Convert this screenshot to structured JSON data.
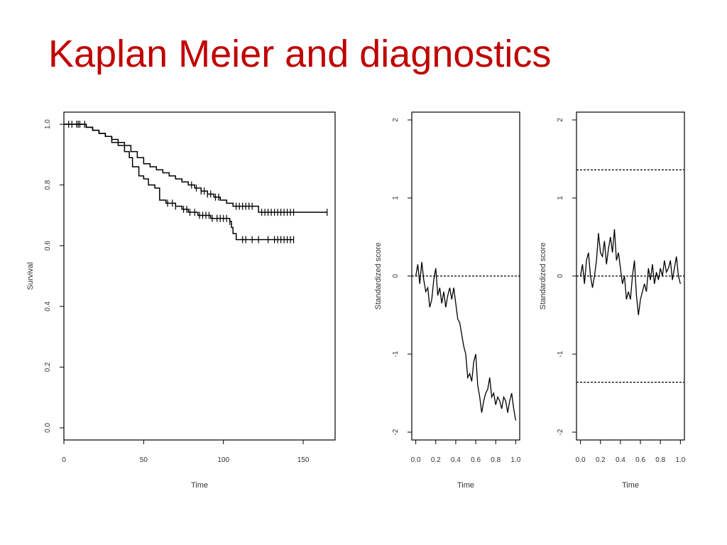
{
  "slide": {
    "title": "Kaplan Meier and diagnostics",
    "title_color": "#c00000"
  },
  "chart_data": [
    {
      "type": "line",
      "subtype": "kaplan-meier",
      "title": "",
      "xlabel": "Time",
      "ylabel": "Survival",
      "xlim": [
        0,
        170
      ],
      "ylim": [
        -0.04,
        1.04
      ],
      "xticks": [
        0,
        50,
        100,
        150
      ],
      "yticks": [
        0.0,
        0.2,
        0.4,
        0.6,
        0.8,
        1.0
      ],
      "xtick_labels": [
        "0",
        "50",
        "100",
        "150"
      ],
      "ytick_labels": [
        "0.0",
        "0.2",
        "0.4",
        "0.6",
        "0.8",
        "1.0"
      ],
      "grid": false,
      "line_color": "#000000",
      "series": [
        {
          "points": [
            [
              0,
              1.0
            ],
            [
              12,
              1.0
            ],
            [
              14,
              0.99
            ],
            [
              18,
              0.98
            ],
            [
              22,
              0.97
            ],
            [
              26,
              0.96
            ],
            [
              30,
              0.95
            ],
            [
              34,
              0.94
            ],
            [
              38,
              0.93
            ],
            [
              42,
              0.91
            ],
            [
              46,
              0.89
            ],
            [
              50,
              0.87
            ],
            [
              54,
              0.86
            ],
            [
              58,
              0.85
            ],
            [
              62,
              0.84
            ],
            [
              66,
              0.83
            ],
            [
              70,
              0.82
            ],
            [
              74,
              0.81
            ],
            [
              78,
              0.8
            ],
            [
              82,
              0.79
            ],
            [
              86,
              0.78
            ],
            [
              90,
              0.77
            ],
            [
              94,
              0.76
            ],
            [
              98,
              0.75
            ],
            [
              102,
              0.74
            ],
            [
              106,
              0.73
            ],
            [
              120,
              0.73
            ],
            [
              122,
              0.71
            ],
            [
              165,
              0.71
            ]
          ],
          "censored": [
            3,
            8,
            10,
            13,
            80,
            83,
            86,
            88,
            90,
            92,
            95,
            97,
            108,
            110,
            112,
            114,
            116,
            118,
            124,
            126,
            128,
            130,
            132,
            134,
            136,
            138,
            140,
            142,
            144,
            165
          ]
        },
        {
          "points": [
            [
              0,
              1.0
            ],
            [
              12,
              1.0
            ],
            [
              14,
              0.99
            ],
            [
              18,
              0.98
            ],
            [
              22,
              0.97
            ],
            [
              26,
              0.96
            ],
            [
              30,
              0.94
            ],
            [
              34,
              0.93
            ],
            [
              38,
              0.91
            ],
            [
              41,
              0.89
            ],
            [
              43,
              0.86
            ],
            [
              47,
              0.83
            ],
            [
              50,
              0.82
            ],
            [
              53,
              0.8
            ],
            [
              57,
              0.79
            ],
            [
              60,
              0.75
            ],
            [
              64,
              0.74
            ],
            [
              70,
              0.73
            ],
            [
              74,
              0.72
            ],
            [
              78,
              0.71
            ],
            [
              84,
              0.7
            ],
            [
              92,
              0.69
            ],
            [
              104,
              0.68
            ],
            [
              105,
              0.66
            ],
            [
              106,
              0.64
            ],
            [
              108,
              0.62
            ],
            [
              144,
              0.62
            ]
          ],
          "censored": [
            5,
            9,
            65,
            68,
            70,
            75,
            77,
            79,
            82,
            85,
            87,
            89,
            91,
            93,
            96,
            98,
            100,
            102,
            104,
            112,
            114,
            118,
            122,
            128,
            132,
            134,
            136,
            138,
            140,
            142,
            144
          ]
        }
      ]
    },
    {
      "type": "line",
      "title": "",
      "xlabel": "Time",
      "ylabel": "Standardized score",
      "xlim": [
        -0.04,
        1.04
      ],
      "ylim": [
        -2.1,
        2.1
      ],
      "xticks": [
        0.0,
        0.2,
        0.4,
        0.6,
        0.8,
        1.0
      ],
      "yticks": [
        -2,
        -1,
        0,
        1,
        2
      ],
      "xtick_labels": [
        "0.0",
        "0.2",
        "0.4",
        "0.6",
        "0.8",
        "1.0"
      ],
      "ytick_labels": [
        "-2",
        "-1",
        "0",
        "1",
        "2"
      ],
      "reference_lines": [
        0
      ],
      "grid": false,
      "series": [
        {
          "x": [
            0.0,
            0.02,
            0.04,
            0.06,
            0.08,
            0.1,
            0.12,
            0.14,
            0.16,
            0.18,
            0.2,
            0.22,
            0.24,
            0.26,
            0.28,
            0.3,
            0.32,
            0.34,
            0.36,
            0.38,
            0.4,
            0.42,
            0.44,
            0.46,
            0.48,
            0.5,
            0.52,
            0.54,
            0.56,
            0.58,
            0.6,
            0.62,
            0.64,
            0.66,
            0.68,
            0.7,
            0.72,
            0.74,
            0.76,
            0.78,
            0.8,
            0.82,
            0.84,
            0.86,
            0.88,
            0.9,
            0.92,
            0.94,
            0.96,
            0.98,
            1.0
          ],
          "y": [
            0.0,
            0.15,
            -0.1,
            0.18,
            -0.05,
            -0.2,
            -0.15,
            -0.4,
            -0.3,
            -0.05,
            0.1,
            -0.25,
            -0.15,
            -0.35,
            -0.2,
            -0.4,
            -0.25,
            -0.15,
            -0.3,
            -0.15,
            -0.35,
            -0.55,
            -0.6,
            -0.75,
            -0.9,
            -1.0,
            -1.3,
            -1.25,
            -1.35,
            -1.1,
            -1.0,
            -1.4,
            -1.55,
            -1.75,
            -1.6,
            -1.5,
            -1.45,
            -1.3,
            -1.55,
            -1.5,
            -1.65,
            -1.55,
            -1.6,
            -1.7,
            -1.55,
            -1.6,
            -1.75,
            -1.6,
            -1.5,
            -1.7,
            -1.85
          ]
        }
      ]
    },
    {
      "type": "line",
      "title": "",
      "xlabel": "Time",
      "ylabel": "Standardized score",
      "xlim": [
        -0.04,
        1.04
      ],
      "ylim": [
        -2.1,
        2.1
      ],
      "xticks": [
        0.0,
        0.2,
        0.4,
        0.6,
        0.8,
        1.0
      ],
      "yticks": [
        -2,
        -1,
        0,
        1,
        2
      ],
      "xtick_labels": [
        "0.0",
        "0.2",
        "0.4",
        "0.6",
        "0.8",
        "1.0"
      ],
      "ytick_labels": [
        "-2",
        "-1",
        "0",
        "1",
        "2"
      ],
      "reference_lines": [
        0,
        1.36,
        -1.36
      ],
      "grid": false,
      "series": [
        {
          "x": [
            0.0,
            0.02,
            0.04,
            0.06,
            0.08,
            0.1,
            0.12,
            0.14,
            0.16,
            0.18,
            0.2,
            0.22,
            0.24,
            0.26,
            0.28,
            0.3,
            0.32,
            0.34,
            0.36,
            0.38,
            0.4,
            0.42,
            0.44,
            0.46,
            0.48,
            0.5,
            0.52,
            0.54,
            0.56,
            0.58,
            0.6,
            0.62,
            0.64,
            0.66,
            0.68,
            0.7,
            0.72,
            0.74,
            0.76,
            0.78,
            0.8,
            0.82,
            0.84,
            0.86,
            0.88,
            0.9,
            0.92,
            0.94,
            0.96,
            0.98,
            1.0
          ],
          "y": [
            0.0,
            0.15,
            -0.1,
            0.2,
            0.3,
            0.0,
            -0.15,
            0.0,
            0.2,
            0.55,
            0.3,
            0.25,
            0.45,
            0.15,
            0.35,
            0.5,
            0.3,
            0.6,
            0.2,
            0.3,
            0.1,
            -0.1,
            0.0,
            -0.3,
            -0.2,
            -0.3,
            0.0,
            0.2,
            -0.25,
            -0.5,
            -0.3,
            -0.2,
            -0.1,
            -0.2,
            0.1,
            -0.05,
            0.15,
            -0.1,
            0.05,
            -0.05,
            0.1,
            0.0,
            0.2,
            0.05,
            0.1,
            0.2,
            -0.05,
            0.1,
            0.25,
            0.0,
            -0.1
          ]
        }
      ]
    }
  ]
}
